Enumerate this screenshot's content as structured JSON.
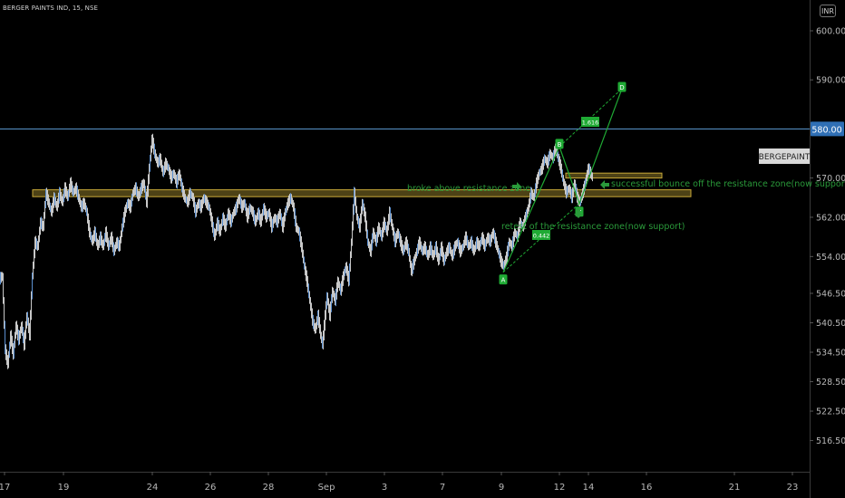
{
  "header": {
    "symbol_line": "BERGER PAINTS IND, 15, NSE",
    "currency": "INR"
  },
  "chart_data": {
    "type": "candlestick",
    "symbol": "BERGER PAINTS IND",
    "interval": "15",
    "exchange": "NSE",
    "ticker_label": "BERGEPAINT",
    "price_tag": "580.00",
    "ylim": [
      513,
      606
    ],
    "y_ticks": [
      "600.00",
      "590.00",
      "580.00",
      "570.00",
      "562.00",
      "554.00",
      "546.50",
      "540.50",
      "534.50",
      "528.50",
      "522.50",
      "516.50"
    ],
    "x_ticks": [
      "17",
      "19",
      "24",
      "26",
      "28",
      "Sep",
      "3",
      "7",
      "9",
      "12",
      "14",
      "16",
      "21",
      "23"
    ],
    "price_path": [
      [
        0,
        549.5
      ],
      [
        3,
        550
      ],
      [
        6,
        535
      ],
      [
        9,
        532
      ],
      [
        12,
        538
      ],
      [
        15,
        534
      ],
      [
        18,
        540
      ],
      [
        21,
        537
      ],
      [
        24,
        540
      ],
      [
        27,
        536
      ],
      [
        30,
        542
      ],
      [
        33,
        538
      ],
      [
        36,
        550
      ],
      [
        39,
        557
      ],
      [
        42,
        556
      ],
      [
        45,
        561
      ],
      [
        48,
        560
      ],
      [
        51,
        567
      ],
      [
        54,
        565
      ],
      [
        57,
        563
      ],
      [
        60,
        566
      ],
      [
        63,
        564
      ],
      [
        66,
        567
      ],
      [
        69,
        565
      ],
      [
        72,
        568
      ],
      [
        75,
        566
      ],
      [
        78,
        569
      ],
      [
        81,
        567
      ],
      [
        84,
        568
      ],
      [
        87,
        566
      ],
      [
        90,
        564
      ],
      [
        93,
        565
      ],
      [
        96,
        563
      ],
      [
        99,
        559
      ],
      [
        102,
        557
      ],
      [
        105,
        559
      ],
      [
        108,
        556
      ],
      [
        111,
        558
      ],
      [
        114,
        556
      ],
      [
        117,
        559
      ],
      [
        120,
        556
      ],
      [
        123,
        558
      ],
      [
        126,
        555
      ],
      [
        129,
        557
      ],
      [
        132,
        556
      ],
      [
        135,
        560
      ],
      [
        138,
        563
      ],
      [
        141,
        565
      ],
      [
        144,
        564
      ],
      [
        147,
        567
      ],
      [
        150,
        568
      ],
      [
        153,
        566
      ],
      [
        156,
        568
      ],
      [
        159,
        569
      ],
      [
        162,
        565
      ],
      [
        165,
        572
      ],
      [
        168,
        578
      ],
      [
        171,
        575
      ],
      [
        174,
        573
      ],
      [
        177,
        574
      ],
      [
        180,
        571
      ],
      [
        183,
        573
      ],
      [
        186,
        572
      ],
      [
        189,
        570
      ],
      [
        192,
        571
      ],
      [
        195,
        569
      ],
      [
        198,
        571
      ],
      [
        201,
        568
      ],
      [
        204,
        566
      ],
      [
        207,
        565
      ],
      [
        210,
        567
      ],
      [
        213,
        566
      ],
      [
        216,
        563
      ],
      [
        219,
        565
      ],
      [
        222,
        564
      ],
      [
        225,
        566
      ],
      [
        228,
        565
      ],
      [
        231,
        564
      ],
      [
        234,
        561
      ],
      [
        237,
        558
      ],
      [
        240,
        561
      ],
      [
        243,
        559
      ],
      [
        246,
        562
      ],
      [
        249,
        560
      ],
      [
        252,
        563
      ],
      [
        255,
        561
      ],
      [
        258,
        563
      ],
      [
        261,
        564
      ],
      [
        264,
        566
      ],
      [
        267,
        564
      ],
      [
        270,
        565
      ],
      [
        273,
        562
      ],
      [
        276,
        564
      ],
      [
        279,
        563
      ],
      [
        282,
        561
      ],
      [
        285,
        563
      ],
      [
        288,
        561
      ],
      [
        291,
        564
      ],
      [
        294,
        562
      ],
      [
        297,
        563
      ],
      [
        300,
        560
      ],
      [
        303,
        562
      ],
      [
        306,
        561
      ],
      [
        309,
        563
      ],
      [
        312,
        560
      ],
      [
        315,
        563
      ],
      [
        318,
        565
      ],
      [
        321,
        566
      ],
      [
        324,
        564
      ],
      [
        327,
        560
      ],
      [
        330,
        559
      ],
      [
        333,
        556
      ],
      [
        336,
        552
      ],
      [
        339,
        549
      ],
      [
        342,
        545
      ],
      [
        345,
        541
      ],
      [
        348,
        539
      ],
      [
        351,
        542
      ],
      [
        354,
        538
      ],
      [
        356,
        536
      ],
      [
        358,
        540
      ],
      [
        361,
        546
      ],
      [
        364,
        542
      ],
      [
        367,
        547
      ],
      [
        370,
        545
      ],
      [
        373,
        549
      ],
      [
        376,
        547
      ],
      [
        379,
        550
      ],
      [
        382,
        552
      ],
      [
        385,
        549
      ],
      [
        388,
        557
      ],
      [
        391,
        567
      ],
      [
        394,
        562
      ],
      [
        397,
        560
      ],
      [
        400,
        565
      ],
      [
        403,
        562
      ],
      [
        406,
        557
      ],
      [
        409,
        555
      ],
      [
        412,
        559
      ],
      [
        415,
        557
      ],
      [
        418,
        560
      ],
      [
        421,
        558
      ],
      [
        424,
        561
      ],
      [
        427,
        559
      ],
      [
        430,
        563
      ],
      [
        433,
        560
      ],
      [
        436,
        557
      ],
      [
        439,
        559
      ],
      [
        442,
        557
      ],
      [
        445,
        555
      ],
      [
        448,
        557
      ],
      [
        451,
        555
      ],
      [
        454,
        551
      ],
      [
        457,
        553
      ],
      [
        460,
        555
      ],
      [
        463,
        557
      ],
      [
        466,
        555
      ],
      [
        469,
        556
      ],
      [
        472,
        554
      ],
      [
        475,
        556
      ],
      [
        478,
        554
      ],
      [
        481,
        556
      ],
      [
        484,
        553
      ],
      [
        487,
        556
      ],
      [
        490,
        553
      ],
      [
        493,
        555
      ],
      [
        496,
        556
      ],
      [
        499,
        554
      ],
      [
        502,
        556
      ],
      [
        505,
        557
      ],
      [
        508,
        555
      ],
      [
        511,
        556
      ],
      [
        514,
        558
      ],
      [
        517,
        556
      ],
      [
        520,
        557
      ],
      [
        523,
        555
      ],
      [
        526,
        557
      ],
      [
        529,
        556
      ],
      [
        532,
        558
      ],
      [
        535,
        556
      ],
      [
        538,
        558
      ],
      [
        541,
        557
      ],
      [
        544,
        559
      ],
      [
        547,
        557
      ],
      [
        550,
        555
      ],
      [
        553,
        553
      ],
      [
        556,
        552
      ],
      [
        559,
        554
      ],
      [
        562,
        557
      ],
      [
        565,
        556
      ],
      [
        568,
        559
      ],
      [
        571,
        558
      ],
      [
        574,
        561
      ],
      [
        577,
        560
      ],
      [
        580,
        562
      ],
      [
        583,
        564
      ],
      [
        586,
        567
      ],
      [
        589,
        566
      ],
      [
        592,
        569
      ],
      [
        595,
        571
      ],
      [
        598,
        572
      ],
      [
        601,
        574
      ],
      [
        604,
        573
      ],
      [
        607,
        575
      ],
      [
        610,
        574
      ],
      [
        613,
        576
      ],
      [
        616,
        574
      ],
      [
        619,
        572
      ],
      [
        622,
        569
      ],
      [
        625,
        567
      ],
      [
        628,
        568
      ],
      [
        631,
        566
      ],
      [
        634,
        569
      ],
      [
        637,
        566
      ],
      [
        640,
        565
      ],
      [
        643,
        567
      ],
      [
        646,
        569
      ],
      [
        649,
        572
      ],
      [
        652,
        571
      ],
      [
        654,
        570
      ]
    ],
    "pattern": {
      "X_price": 565.5,
      "A_price": 550.8,
      "B_price": 576.4,
      "C_price": 564.8,
      "D_price": 588.2,
      "labels": [
        "A",
        "B",
        "C",
        "D"
      ],
      "ratio_ab": "1.616",
      "ratio_bc": "0.442"
    },
    "levels": {
      "resistance_line": 580.0,
      "zone_main": [
        566.2,
        567.6
      ],
      "zone_small": [
        570.0,
        571.0
      ]
    },
    "annotations": {
      "broke": "broke above resistance zone",
      "bounce": "successful bounce off the resistance zone(now support)",
      "retest": "retest of the resistance zone(now support)"
    },
    "colors": {
      "background": "#000000",
      "candle": "#c8c8c8",
      "candle_blue": "#5b8fcf",
      "resistance": "#5b9bd5",
      "zone_border": "#c8a838",
      "zone_fill": "#5a4e1a",
      "pattern": "#1faa34",
      "annotation": "#2a9a3a",
      "axis_text": "#b8b8b8"
    }
  }
}
